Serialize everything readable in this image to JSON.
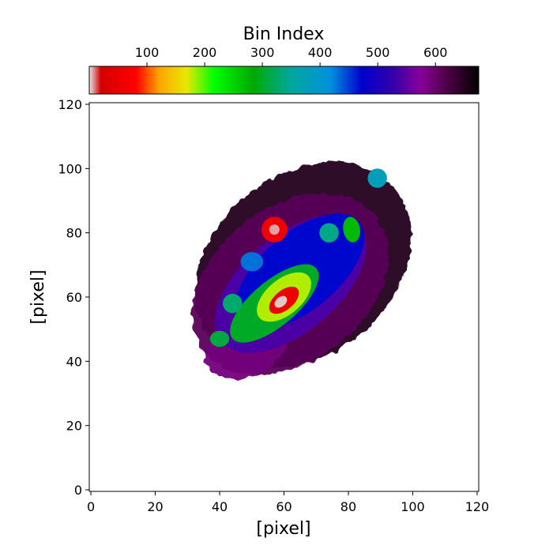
{
  "chart_data": {
    "type": "heatmap",
    "title": "",
    "xlabel": "[pixel]",
    "ylabel": "[pixel]",
    "xlim": [
      -0.5,
      120.5
    ],
    "ylim": [
      -0.5,
      120.5
    ],
    "xticks": [
      0,
      20,
      40,
      60,
      80,
      100,
      120
    ],
    "yticks": [
      0,
      20,
      40,
      60,
      80,
      100,
      120
    ],
    "colorbar": {
      "label": "Bin Index",
      "location": "top",
      "range": [
        0,
        675
      ],
      "ticks": [
        100,
        200,
        300,
        400,
        500,
        600
      ],
      "colormap": "nipy_spectral_r",
      "stops": [
        {
          "v": 0.0,
          "c": "#e8e8e8"
        },
        {
          "v": 0.03,
          "c": "#d40000"
        },
        {
          "v": 0.12,
          "c": "#ff0000"
        },
        {
          "v": 0.18,
          "c": "#ffa500"
        },
        {
          "v": 0.25,
          "c": "#e8e800"
        },
        {
          "v": 0.32,
          "c": "#00ff00"
        },
        {
          "v": 0.42,
          "c": "#00aa00"
        },
        {
          "v": 0.52,
          "c": "#00a8a0"
        },
        {
          "v": 0.62,
          "c": "#0090dd"
        },
        {
          "v": 0.7,
          "c": "#0000cc"
        },
        {
          "v": 0.78,
          "c": "#3300aa"
        },
        {
          "v": 0.85,
          "c": "#880099"
        },
        {
          "v": 0.93,
          "c": "#44003a"
        },
        {
          "v": 1.0,
          "c": "#000000"
        }
      ]
    },
    "map": {
      "description_units": "pixel coordinates; bin index colour-coded",
      "outer_envelope_bin": 660,
      "regions": [
        {
          "kind": "halo",
          "center": [
            66,
            70
          ],
          "rx": 37,
          "ry": 28,
          "angle_deg": 40,
          "bin": 650
        },
        {
          "kind": "halo",
          "center": [
            62,
            64
          ],
          "rx": 34,
          "ry": 24,
          "angle_deg": 38,
          "bin": 610
        },
        {
          "kind": "halo",
          "center": [
            48,
            44
          ],
          "rx": 13,
          "ry": 9,
          "angle_deg": 20,
          "bin": 590
        },
        {
          "kind": "disk",
          "center": [
            62,
            64
          ],
          "rx": 28,
          "ry": 15,
          "angle_deg": 40,
          "bin": 540
        },
        {
          "kind": "disk",
          "center": [
            65,
            68
          ],
          "rx": 24,
          "ry": 12,
          "angle_deg": 40,
          "bin": 470
        },
        {
          "kind": "arm",
          "center": [
            57,
            58
          ],
          "rx": 17,
          "ry": 7,
          "angle_deg": 40,
          "bin": 300
        },
        {
          "kind": "core",
          "center": [
            60,
            60
          ],
          "rx": 10,
          "ry": 5.5,
          "angle_deg": 40,
          "bin": 180
        },
        {
          "kind": "core",
          "center": [
            60,
            59
          ],
          "rx": 5.5,
          "ry": 3,
          "angle_deg": 40,
          "bin": 60
        },
        {
          "kind": "nucleus",
          "center": [
            59,
            58.5
          ],
          "rx": 2.2,
          "ry": 1.5,
          "angle_deg": 40,
          "bin": 3
        },
        {
          "kind": "knot",
          "center": [
            57,
            81
          ],
          "rx": 4,
          "ry": 4,
          "angle_deg": 0,
          "bin": 60
        },
        {
          "kind": "knot",
          "center": [
            57,
            81
          ],
          "rx": 1.6,
          "ry": 1.6,
          "angle_deg": 0,
          "bin": 6
        },
        {
          "kind": "knot",
          "center": [
            81,
            81
          ],
          "rx": 2.6,
          "ry": 4,
          "angle_deg": 10,
          "bin": 270
        },
        {
          "kind": "knot",
          "center": [
            74,
            80
          ],
          "rx": 3,
          "ry": 3,
          "angle_deg": 0,
          "bin": 340
        },
        {
          "kind": "knot",
          "center": [
            44,
            58
          ],
          "rx": 3,
          "ry": 3,
          "angle_deg": 0,
          "bin": 330
        },
        {
          "kind": "knot",
          "center": [
            40,
            47
          ],
          "rx": 3,
          "ry": 2.5,
          "angle_deg": 0,
          "bin": 310
        },
        {
          "kind": "knot",
          "center": [
            50,
            71
          ],
          "rx": 3.5,
          "ry": 3,
          "angle_deg": 0,
          "bin": 430
        },
        {
          "kind": "knot",
          "center": [
            89,
            97
          ],
          "rx": 3,
          "ry": 3,
          "angle_deg": 0,
          "bin": 380
        }
      ]
    }
  }
}
